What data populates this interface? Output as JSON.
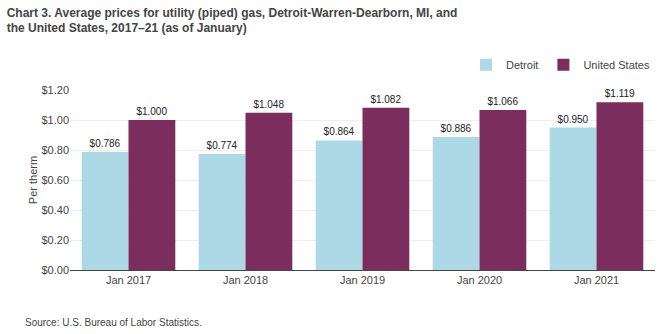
{
  "chart_data": {
    "type": "bar",
    "title": "Chart 3. Average prices for utility (piped) gas, Detroit-Warren-Dearborn, MI, and\nthe United States, 2017–21 (as of January)",
    "ylabel": "Per therm",
    "annotations": [
      "Source: U.S. Bureau of Labor Statistics."
    ],
    "categories": [
      "Jan 2017",
      "Jan 2018",
      "Jan 2019",
      "Jan 2020",
      "Jan 2021"
    ],
    "series": [
      {
        "name": "Detroit",
        "color": "#ADD8E6",
        "values": [
          0.786,
          0.774,
          0.864,
          0.886,
          0.95
        ],
        "value_labels": [
          "$0.786",
          "$0.774",
          "$0.864",
          "$0.886",
          "$0.950"
        ]
      },
      {
        "name": "United States",
        "color": "#7B2D5E",
        "values": [
          1.0,
          1.048,
          1.082,
          1.066,
          1.119
        ],
        "value_labels": [
          "$1.000",
          "$1.048",
          "$1.082",
          "$1.066",
          "$1.119"
        ]
      }
    ],
    "ylim": [
      0,
      1.2
    ],
    "yticks": [
      {
        "value": 0,
        "label": "$0.00"
      },
      {
        "value": 0.2,
        "label": "$0.20"
      },
      {
        "value": 0.4,
        "label": "$0.40"
      },
      {
        "value": 0.6,
        "label": "$0.60"
      },
      {
        "value": 0.8,
        "label": "$0.80"
      },
      {
        "value": 1.0,
        "label": "$1.00"
      },
      {
        "value": 1.2,
        "label": "$1.20"
      }
    ],
    "grid": true,
    "legend": "top right",
    "data_labels": true
  }
}
